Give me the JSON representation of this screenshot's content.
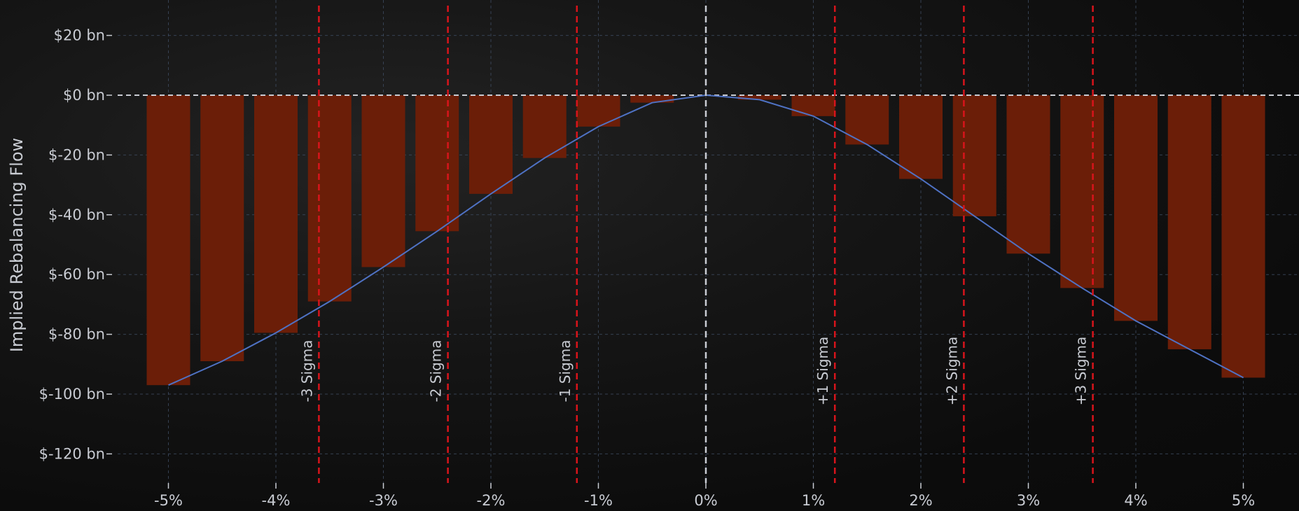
{
  "chart_data": {
    "type": "bar",
    "title": "",
    "xlabel": "",
    "ylabel": "Implied Rebalancing Flow",
    "x": [
      -5.0,
      -4.5,
      -4.0,
      -3.5,
      -3.0,
      -2.5,
      -2.0,
      -1.5,
      -1.0,
      -0.5,
      0.0,
      0.5,
      1.0,
      1.5,
      2.0,
      2.5,
      3.0,
      3.5,
      4.0,
      4.5,
      5.0
    ],
    "series": [
      {
        "kind": "bar",
        "values": [
          -97,
          -89,
          -79.5,
          -69,
          -57.5,
          -45.5,
          -33,
          -21,
          -10.5,
          -2.5,
          0,
          -1.5,
          -7,
          -16.5,
          -28,
          -40.5,
          -53,
          -64.5,
          -75.5,
          -85,
          -94.5
        ],
        "color": "#6b1e08"
      },
      {
        "kind": "line",
        "values": [
          -97,
          -89,
          -79.5,
          -69,
          -57.5,
          -45.5,
          -33,
          -21,
          -10.5,
          -2.5,
          0,
          -1.5,
          -7,
          -16.5,
          -28,
          -40.5,
          -53,
          -64.5,
          -75.5,
          -85,
          -94.5
        ],
        "color": "#4f72c4"
      }
    ],
    "xlim": [
      -5.4,
      5.4
    ],
    "ylim": [
      -130,
      25
    ],
    "yticks": [
      20,
      0,
      -20,
      -40,
      -60,
      -80,
      -100,
      -120
    ],
    "ytick_labels": [
      "$20 bn",
      "$0 bn",
      "$-20 bn",
      "$-40 bn",
      "$-60 bn",
      "$-80 bn",
      "$-100 bn",
      "$-120 bn"
    ],
    "xticks": [
      -5,
      -4,
      -3,
      -2,
      -1,
      0,
      1,
      2,
      3,
      4,
      5
    ],
    "xtick_labels": [
      "-5%",
      "-4%",
      "-3%",
      "-2%",
      "-1%",
      "0%",
      "1%",
      "2%",
      "3%",
      "4%",
      "5%"
    ],
    "reference_lines": [
      {
        "x": -3.6,
        "label": "-3 Sigma",
        "color": "#d8141b"
      },
      {
        "x": -2.4,
        "label": "-2 Sigma",
        "color": "#d8141b"
      },
      {
        "x": -1.2,
        "label": "-1 Sigma",
        "color": "#d8141b"
      },
      {
        "x": 0.0,
        "label": "",
        "color": "#c9ccd3"
      },
      {
        "x": 1.2,
        "label": "+1 Sigma",
        "color": "#d8141b"
      },
      {
        "x": 2.4,
        "label": "+2 Sigma",
        "color": "#d8141b"
      },
      {
        "x": 3.6,
        "label": "+3 Sigma",
        "color": "#d8141b"
      }
    ],
    "zero_line_color": "#c9ccd3",
    "grid": true,
    "grid_color": "#3e4c62"
  }
}
